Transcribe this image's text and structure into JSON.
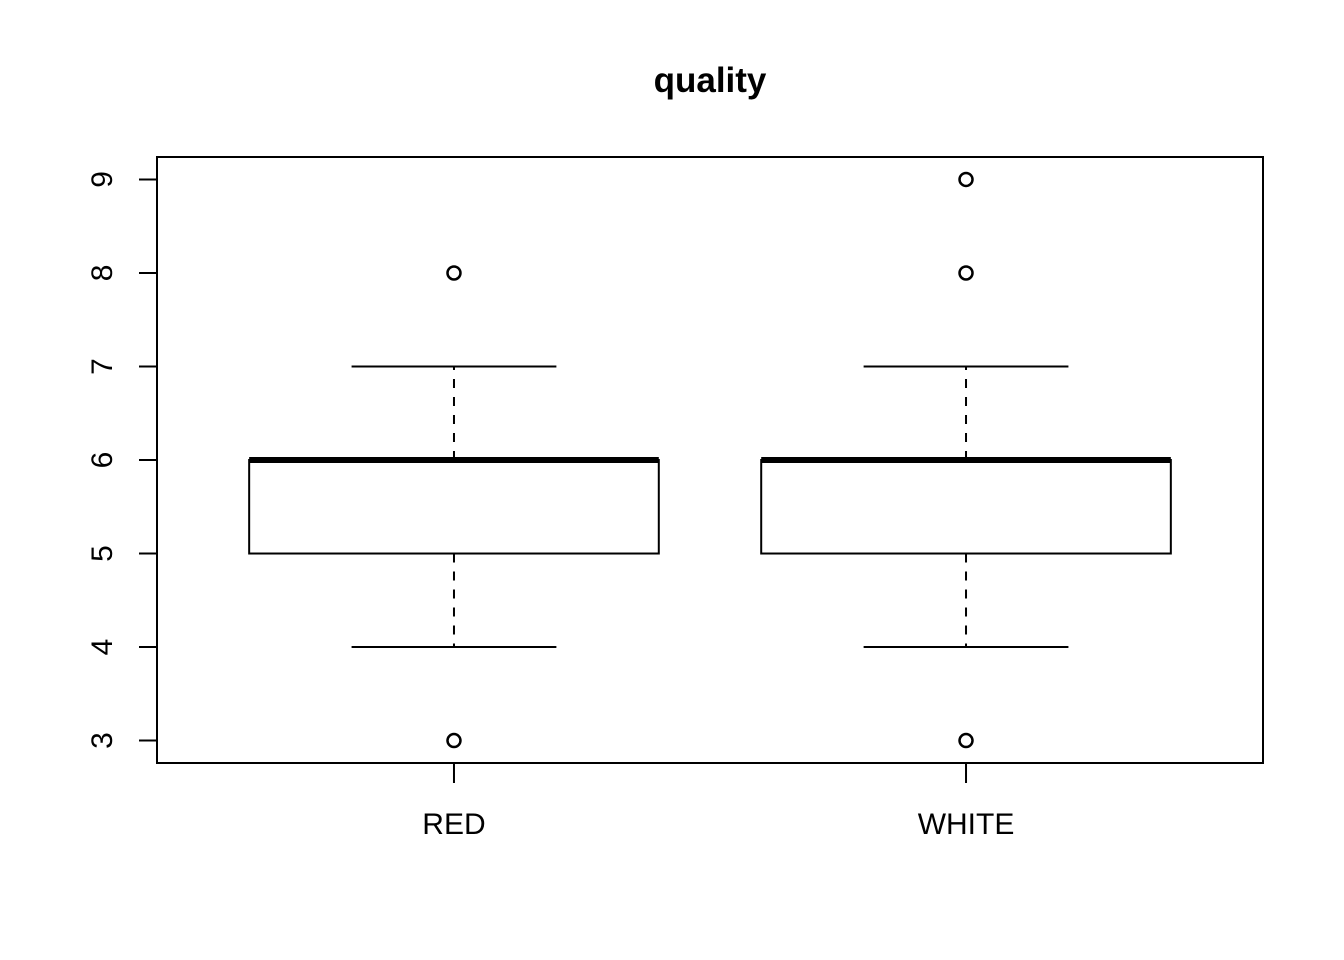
{
  "chart_data": {
    "type": "boxplot",
    "title": "quality",
    "xlabel": "",
    "ylabel": "",
    "categories": [
      "RED",
      "WHITE"
    ],
    "boxes": [
      {
        "category": "RED",
        "whisker_low": 4,
        "q1": 5,
        "median": 6,
        "q3": 6,
        "whisker_high": 7,
        "outliers": [
          3,
          8
        ]
      },
      {
        "category": "WHITE",
        "whisker_low": 4,
        "q1": 5,
        "median": 6,
        "q3": 6,
        "whisker_high": 7,
        "outliers": [
          3,
          8,
          9
        ]
      }
    ],
    "yticks": [
      3,
      4,
      5,
      6,
      7,
      8,
      9
    ],
    "ylim": [
      2.76,
      9.24
    ],
    "grid": false,
    "colors": {
      "stroke": "#000000",
      "box_fill": "#ffffff"
    }
  }
}
